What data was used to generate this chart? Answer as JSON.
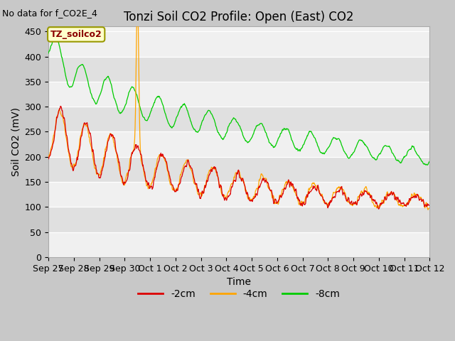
{
  "title": "Tonzi Soil CO2 Profile: Open (East) CO2",
  "subtitle": "No data for f_CO2E_4",
  "ylabel": "Soil CO2 (mV)",
  "xlabel": "Time",
  "annotation": "TZ_soilco2",
  "ylim": [
    0,
    460
  ],
  "yticks": [
    0,
    50,
    100,
    150,
    200,
    250,
    300,
    350,
    400,
    450
  ],
  "legend_labels": [
    "-2cm",
    "-4cm",
    "-8cm"
  ],
  "legend_colors": [
    "#dd0000",
    "#ffa500",
    "#00cc00"
  ],
  "title_fontsize": 12,
  "axis_fontsize": 10,
  "tick_fontsize": 9,
  "xtick_labels": [
    "Sep 27",
    "Sep 28",
    "Sep 29",
    "Sep 30",
    "Oct 1",
    "Oct 2",
    "Oct 3",
    "Oct 4",
    "Oct 5",
    "Oct 6",
    "Oct 7",
    "Oct 8",
    "Oct 9",
    "Oct 10",
    "Oct 11",
    "Oct 12"
  ],
  "num_points": 960,
  "seed": 42,
  "band_colors": [
    "#f0f0f0",
    "#e0e0e0"
  ]
}
